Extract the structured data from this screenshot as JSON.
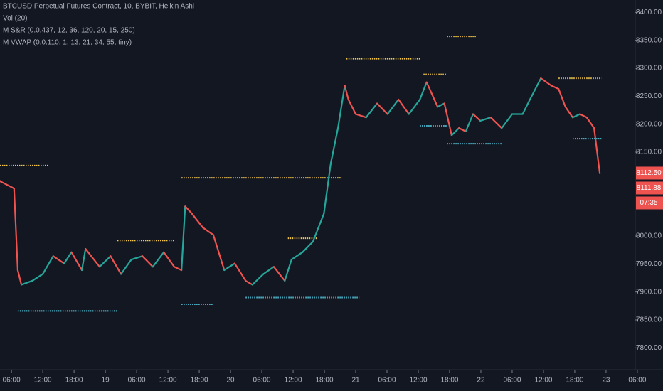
{
  "chart_data": {
    "type": "line",
    "title": "BTCUSD Perpetual Futures Contract, 10, BYBIT, Heikin Ashi",
    "indicators": [
      "Vol (20)",
      "M S&R (0.0.437, 12, 36, 120, 20, 15, 250)",
      "M VWAP (0.0.110, 1, 13, 21, 34, 55, tiny)"
    ],
    "up_color": "#26a69a",
    "down_color": "#ef5350",
    "x": [
      -2.2,
      0.5,
      1.2,
      1.9,
      4.0,
      6.0,
      8.0,
      10.1,
      11.5,
      13.5,
      14.2,
      16.9,
      19.0,
      21.0,
      23.0,
      25.1,
      27.1,
      29.2,
      31.2,
      32.6,
      33.3,
      34.6,
      36.7,
      38.7,
      40.8,
      42.8,
      44.9,
      46.2,
      48.3,
      50.3,
      52.4,
      53.7,
      55.8,
      57.8,
      59.9,
      61.2,
      62.6,
      63.9,
      64.6,
      66.0,
      68.0,
      70.1,
      72.1,
      74.2,
      76.2,
      78.3,
      79.6,
      81.7,
      83.0,
      84.4,
      85.8,
      87.1,
      88.5,
      89.9,
      91.9,
      94.0,
      96.0,
      98.0,
      99.4,
      101.5,
      103.5,
      104.9,
      106.2,
      107.6,
      109.0,
      110.3,
      111.7,
      112.8
    ],
    "values": [
      8098,
      8085,
      7939,
      7913,
      7920,
      7932,
      7964,
      7951,
      7971,
      7939,
      7977,
      7945,
      7964,
      7932,
      7958,
      7964,
      7945,
      7971,
      7945,
      7939,
      8053,
      8040,
      8015,
      8002,
      7939,
      7951,
      7920,
      7913,
      7932,
      7945,
      7920,
      7958,
      7971,
      7990,
      8040,
      8129,
      8193,
      8269,
      8244,
      8218,
      8212,
      8237,
      8218,
      8244,
      8218,
      8244,
      8275,
      8231,
      8237,
      8180,
      8193,
      8187,
      8218,
      8206,
      8212,
      8193,
      8218,
      8218,
      8244,
      8282,
      8269,
      8263,
      8231,
      8212,
      8218,
      8212,
      8193,
      8112
    ],
    "levels": [
      {
        "color": "#f7c948",
        "value": 8126,
        "x": [
          -2.2,
          7.1
        ]
      },
      {
        "color": "#f7c948",
        "value": 8104,
        "x": [
          32.6,
          63.3
        ]
      },
      {
        "color": "#f7c948",
        "value": 8317,
        "x": [
          64.2,
          78.5
        ]
      },
      {
        "color": "#f7c948",
        "value": 8357,
        "x": [
          83.5,
          89.2
        ]
      },
      {
        "color": "#f7c948",
        "value": 8289,
        "x": [
          79.0,
          83.5
        ]
      },
      {
        "color": "#f7c948",
        "value": 8282,
        "x": [
          104.9,
          113.1
        ]
      },
      {
        "color": "#f7c948",
        "value": 7996,
        "x": [
          53.0,
          58.5
        ]
      },
      {
        "color": "#f7c948",
        "value": 7992,
        "x": [
          20.3,
          31.2
        ]
      },
      {
        "color": "#4fc3d9",
        "value": 7866,
        "x": [
          1.2,
          20.3
        ]
      },
      {
        "color": "#4fc3d9",
        "value": 7878,
        "x": [
          32.6,
          38.7
        ]
      },
      {
        "color": "#4fc3d9",
        "value": 7890,
        "x": [
          44.9,
          66.7
        ]
      },
      {
        "color": "#4fc3d9",
        "value": 8165,
        "x": [
          83.5,
          94.0
        ]
      },
      {
        "color": "#4fc3d9",
        "value": 8174,
        "x": [
          107.6,
          113.1
        ]
      },
      {
        "color": "#4fc3d9",
        "value": 8197,
        "x": [
          78.3,
          83.5
        ]
      }
    ],
    "price_markers": [
      {
        "value": 8112.5,
        "label": "8112.50"
      },
      {
        "value": 8111.88,
        "label": "8111.88"
      }
    ],
    "countdown": "07:35",
    "xlim": [
      -2.2,
      119.6
    ],
    "xticks": [
      {
        "value": 0,
        "label": "06:00"
      },
      {
        "value": 6,
        "label": "12:00"
      },
      {
        "value": 12,
        "label": "18:00"
      },
      {
        "value": 18,
        "label": "19"
      },
      {
        "value": 24,
        "label": "06:00"
      },
      {
        "value": 30,
        "label": "12:00"
      },
      {
        "value": 36,
        "label": "18:00"
      },
      {
        "value": 42,
        "label": "20"
      },
      {
        "value": 48,
        "label": "06:00"
      },
      {
        "value": 54,
        "label": "12:00"
      },
      {
        "value": 60,
        "label": "18:00"
      },
      {
        "value": 66,
        "label": "21"
      },
      {
        "value": 72,
        "label": "06:00"
      },
      {
        "value": 78,
        "label": "12:00"
      },
      {
        "value": 84,
        "label": "18:00"
      },
      {
        "value": 90,
        "label": "22"
      },
      {
        "value": 96,
        "label": "06:00"
      },
      {
        "value": 102,
        "label": "12:00"
      },
      {
        "value": 108,
        "label": "18:00"
      },
      {
        "value": 114,
        "label": "23"
      },
      {
        "value": 120,
        "label": "06:00"
      }
    ],
    "ylim": [
      7761,
      8422
    ],
    "yticks": [
      {
        "value": 7800,
        "label": "7800.00"
      },
      {
        "value": 7850,
        "label": "7850.00"
      },
      {
        "value": 7900,
        "label": "7900.00"
      },
      {
        "value": 7950,
        "label": "7950.00"
      },
      {
        "value": 8000,
        "label": "8000.00"
      },
      {
        "value": 8150,
        "label": "8150.00"
      },
      {
        "value": 8200,
        "label": "8200.00"
      },
      {
        "value": 8250,
        "label": "8250.00"
      },
      {
        "value": 8300,
        "label": "8300.00"
      },
      {
        "value": 8350,
        "label": "8350.00"
      },
      {
        "value": 8400,
        "label": "8400.00"
      }
    ],
    "grid": false
  }
}
